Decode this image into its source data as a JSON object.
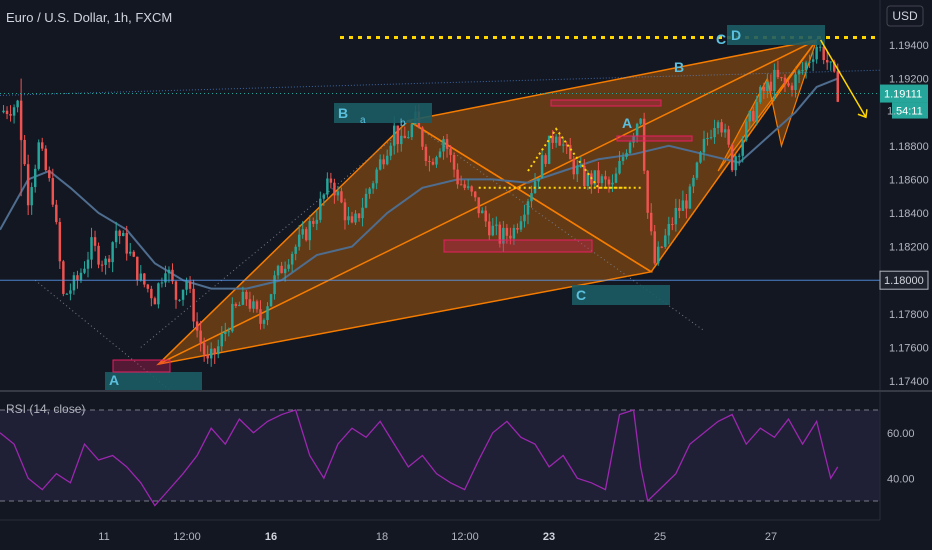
{
  "header": {
    "symbol_title": "Euro / U.S. Dollar, 1h, FXCM",
    "currency_button": "USD"
  },
  "price_axis": {
    "ticks": [
      "1.19400",
      "1.19200",
      "1.18800",
      "1.18600",
      "1.18400",
      "1.18200",
      "1.17800",
      "1.17600",
      "1.17400"
    ],
    "price_tag_top_partial": "1",
    "price_tag_mid_partial": "1."
  },
  "markers": {
    "last_price": "1.19111",
    "countdown": "54:11",
    "horizontal_line_price": "1.18000"
  },
  "pattern": {
    "point_labels": [
      "A",
      "B",
      "C",
      "D"
    ],
    "small_labels": [
      "a",
      "b"
    ],
    "secondary_labels": [
      "A",
      "B",
      "C"
    ]
  },
  "rsi": {
    "title": "RSI (14, close)",
    "ticks": [
      "60.00",
      "40.00"
    ]
  },
  "time_axis": {
    "labels": [
      "11",
      "12:00",
      "16",
      "18",
      "12:00",
      "23",
      "25",
      "27"
    ],
    "bold_labels": [
      "16",
      "23"
    ]
  },
  "colors": {
    "background": "#131722",
    "candle_up": "#26a69a",
    "candle_down": "#ef5350",
    "pattern_fill": "#f57c00",
    "ma_line": "#4f6d8f",
    "rsi_line": "#9c27b0",
    "label_box": "#1c5b63",
    "dotted_yellow": "#ffd600"
  },
  "chart_data": [
    {
      "type": "candlestick",
      "title": "Euro / U.S. Dollar, 1h, FXCM",
      "ylim": [
        1.173,
        1.1955
      ],
      "close_path": [
        [
          0,
          1.19
        ],
        [
          5,
          1.1905
        ],
        [
          8,
          1.185
        ],
        [
          11,
          1.188
        ],
        [
          15,
          1.185
        ],
        [
          18,
          1.179
        ],
        [
          22,
          1.18
        ],
        [
          26,
          1.182
        ],
        [
          30,
          1.181
        ],
        [
          33,
          1.183
        ],
        [
          36,
          1.182
        ],
        [
          40,
          1.18
        ],
        [
          44,
          1.179
        ],
        [
          47,
          1.181
        ],
        [
          50,
          1.179
        ],
        [
          53,
          1.18
        ],
        [
          56,
          1.177
        ],
        [
          59,
          1.175
        ],
        [
          62,
          1.176
        ],
        [
          66,
          1.178
        ],
        [
          70,
          1.179
        ],
        [
          74,
          1.1775
        ],
        [
          78,
          1.18
        ],
        [
          82,
          1.1815
        ],
        [
          86,
          1.1825
        ],
        [
          90,
          1.184
        ],
        [
          94,
          1.186
        ],
        [
          97,
          1.1845
        ],
        [
          100,
          1.183
        ],
        [
          104,
          1.185
        ],
        [
          108,
          1.187
        ],
        [
          112,
          1.189
        ],
        [
          114,
          1.188
        ],
        [
          118,
          1.1895
        ],
        [
          122,
          1.187
        ],
        [
          126,
          1.1885
        ],
        [
          130,
          1.186
        ],
        [
          134,
          1.185
        ],
        [
          138,
          1.1835
        ],
        [
          142,
          1.1825
        ],
        [
          146,
          1.183
        ],
        [
          150,
          1.185
        ],
        [
          154,
          1.187
        ],
        [
          158,
          1.189
        ],
        [
          162,
          1.187
        ],
        [
          166,
          1.186
        ],
        [
          170,
          1.186
        ],
        [
          174,
          1.1855
        ],
        [
          178,
          1.188
        ],
        [
          182,
          1.19
        ],
        [
          184,
          1.184
        ],
        [
          186,
          1.181
        ],
        [
          188,
          1.182
        ],
        [
          192,
          1.184
        ],
        [
          196,
          1.185
        ],
        [
          200,
          1.188
        ],
        [
          204,
          1.19
        ],
        [
          208,
          1.187
        ],
        [
          212,
          1.189
        ],
        [
          216,
          1.191
        ],
        [
          220,
          1.192
        ],
        [
          224,
          1.1915
        ],
        [
          228,
          1.1925
        ],
        [
          232,
          1.194
        ],
        [
          234,
          1.1935
        ],
        [
          236,
          1.1925
        ],
        [
          238,
          1.1912
        ]
      ],
      "moving_average": [
        [
          0,
          1.183
        ],
        [
          8,
          1.186
        ],
        [
          14,
          1.1865
        ],
        [
          20,
          1.1855
        ],
        [
          28,
          1.184
        ],
        [
          36,
          1.183
        ],
        [
          44,
          1.181
        ],
        [
          52,
          1.18
        ],
        [
          60,
          1.1795
        ],
        [
          70,
          1.1795
        ],
        [
          80,
          1.18
        ],
        [
          90,
          1.1815
        ],
        [
          100,
          1.182
        ],
        [
          110,
          1.184
        ],
        [
          120,
          1.1855
        ],
        [
          130,
          1.186
        ],
        [
          140,
          1.186
        ],
        [
          150,
          1.1858
        ],
        [
          160,
          1.1865
        ],
        [
          170,
          1.1872
        ],
        [
          180,
          1.1875
        ],
        [
          190,
          1.188
        ],
        [
          200,
          1.1875
        ],
        [
          210,
          1.187
        ],
        [
          218,
          1.1885
        ],
        [
          226,
          1.19
        ],
        [
          232,
          1.1915
        ],
        [
          238,
          1.192
        ]
      ],
      "horizontal_levels": [
        1.18,
        1.19445
      ],
      "pattern_points": {
        "A": [
          45,
          1.175
        ],
        "B": [
          116,
          1.1895
        ],
        "C": [
          185,
          1.1805
        ],
        "D": [
          232,
          1.1943
        ]
      },
      "projection_target": [
        246,
        1.1897
      ]
    },
    {
      "type": "line",
      "title": "RSI (14, close)",
      "ylim": [
        25,
        75
      ],
      "series": [
        {
          "values": [
            [
              0,
              60
            ],
            [
              4,
              55
            ],
            [
              8,
              40
            ],
            [
              12,
              35
            ],
            [
              16,
              42
            ],
            [
              20,
              38
            ],
            [
              24,
              55
            ],
            [
              28,
              48
            ],
            [
              32,
              50
            ],
            [
              36,
              45
            ],
            [
              40,
              38
            ],
            [
              44,
              28
            ],
            [
              48,
              35
            ],
            [
              52,
              42
            ],
            [
              56,
              50
            ],
            [
              60,
              62
            ],
            [
              64,
              55
            ],
            [
              68,
              66
            ],
            [
              72,
              60
            ],
            [
              76,
              65
            ],
            [
              80,
              68
            ],
            [
              84,
              70
            ],
            [
              88,
              50
            ],
            [
              92,
              40
            ],
            [
              96,
              55
            ],
            [
              100,
              62
            ],
            [
              104,
              58
            ],
            [
              108,
              65
            ],
            [
              112,
              55
            ],
            [
              116,
              45
            ],
            [
              120,
              50
            ],
            [
              124,
              42
            ],
            [
              128,
              38
            ],
            [
              132,
              35
            ],
            [
              136,
              48
            ],
            [
              140,
              60
            ],
            [
              144,
              65
            ],
            [
              148,
              58
            ],
            [
              152,
              55
            ],
            [
              156,
              45
            ],
            [
              160,
              50
            ],
            [
              164,
              40
            ],
            [
              168,
              38
            ],
            [
              172,
              35
            ],
            [
              176,
              68
            ],
            [
              180,
              70
            ],
            [
              182,
              45
            ],
            [
              184,
              30
            ],
            [
              188,
              36
            ],
            [
              192,
              42
            ],
            [
              196,
              55
            ],
            [
              200,
              60
            ],
            [
              204,
              65
            ],
            [
              208,
              68
            ],
            [
              212,
              55
            ],
            [
              216,
              62
            ],
            [
              220,
              58
            ],
            [
              224,
              66
            ],
            [
              228,
              55
            ],
            [
              232,
              65
            ],
            [
              236,
              40
            ],
            [
              238,
              45
            ]
          ]
        }
      ],
      "levels": [
        70,
        30
      ]
    }
  ]
}
